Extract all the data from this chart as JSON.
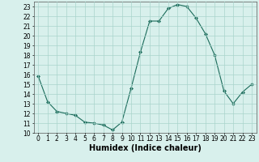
{
  "x": [
    0,
    1,
    2,
    3,
    4,
    5,
    6,
    7,
    8,
    9,
    10,
    11,
    12,
    13,
    14,
    15,
    16,
    17,
    18,
    19,
    20,
    21,
    22,
    23
  ],
  "y": [
    15.8,
    13.2,
    12.2,
    12.0,
    11.8,
    11.1,
    11.0,
    10.8,
    10.3,
    11.1,
    14.6,
    18.3,
    21.5,
    21.5,
    22.8,
    23.2,
    23.0,
    21.8,
    20.2,
    18.0,
    14.3,
    13.0,
    14.2,
    15.0
  ],
  "xlabel": "Humidex (Indice chaleur)",
  "ylim": [
    10,
    23.5
  ],
  "xlim": [
    -0.5,
    23.5
  ],
  "yticks": [
    10,
    11,
    12,
    13,
    14,
    15,
    16,
    17,
    18,
    19,
    20,
    21,
    22,
    23
  ],
  "xticks": [
    0,
    1,
    2,
    3,
    4,
    5,
    6,
    7,
    8,
    9,
    10,
    11,
    12,
    13,
    14,
    15,
    16,
    17,
    18,
    19,
    20,
    21,
    22,
    23
  ],
  "line_color": "#1a6b5a",
  "marker_color": "#1a6b5a",
  "bg_color": "#d8f0ec",
  "grid_color": "#aad4cc",
  "tick_label_fontsize": 5.5,
  "xlabel_fontsize": 7.0
}
